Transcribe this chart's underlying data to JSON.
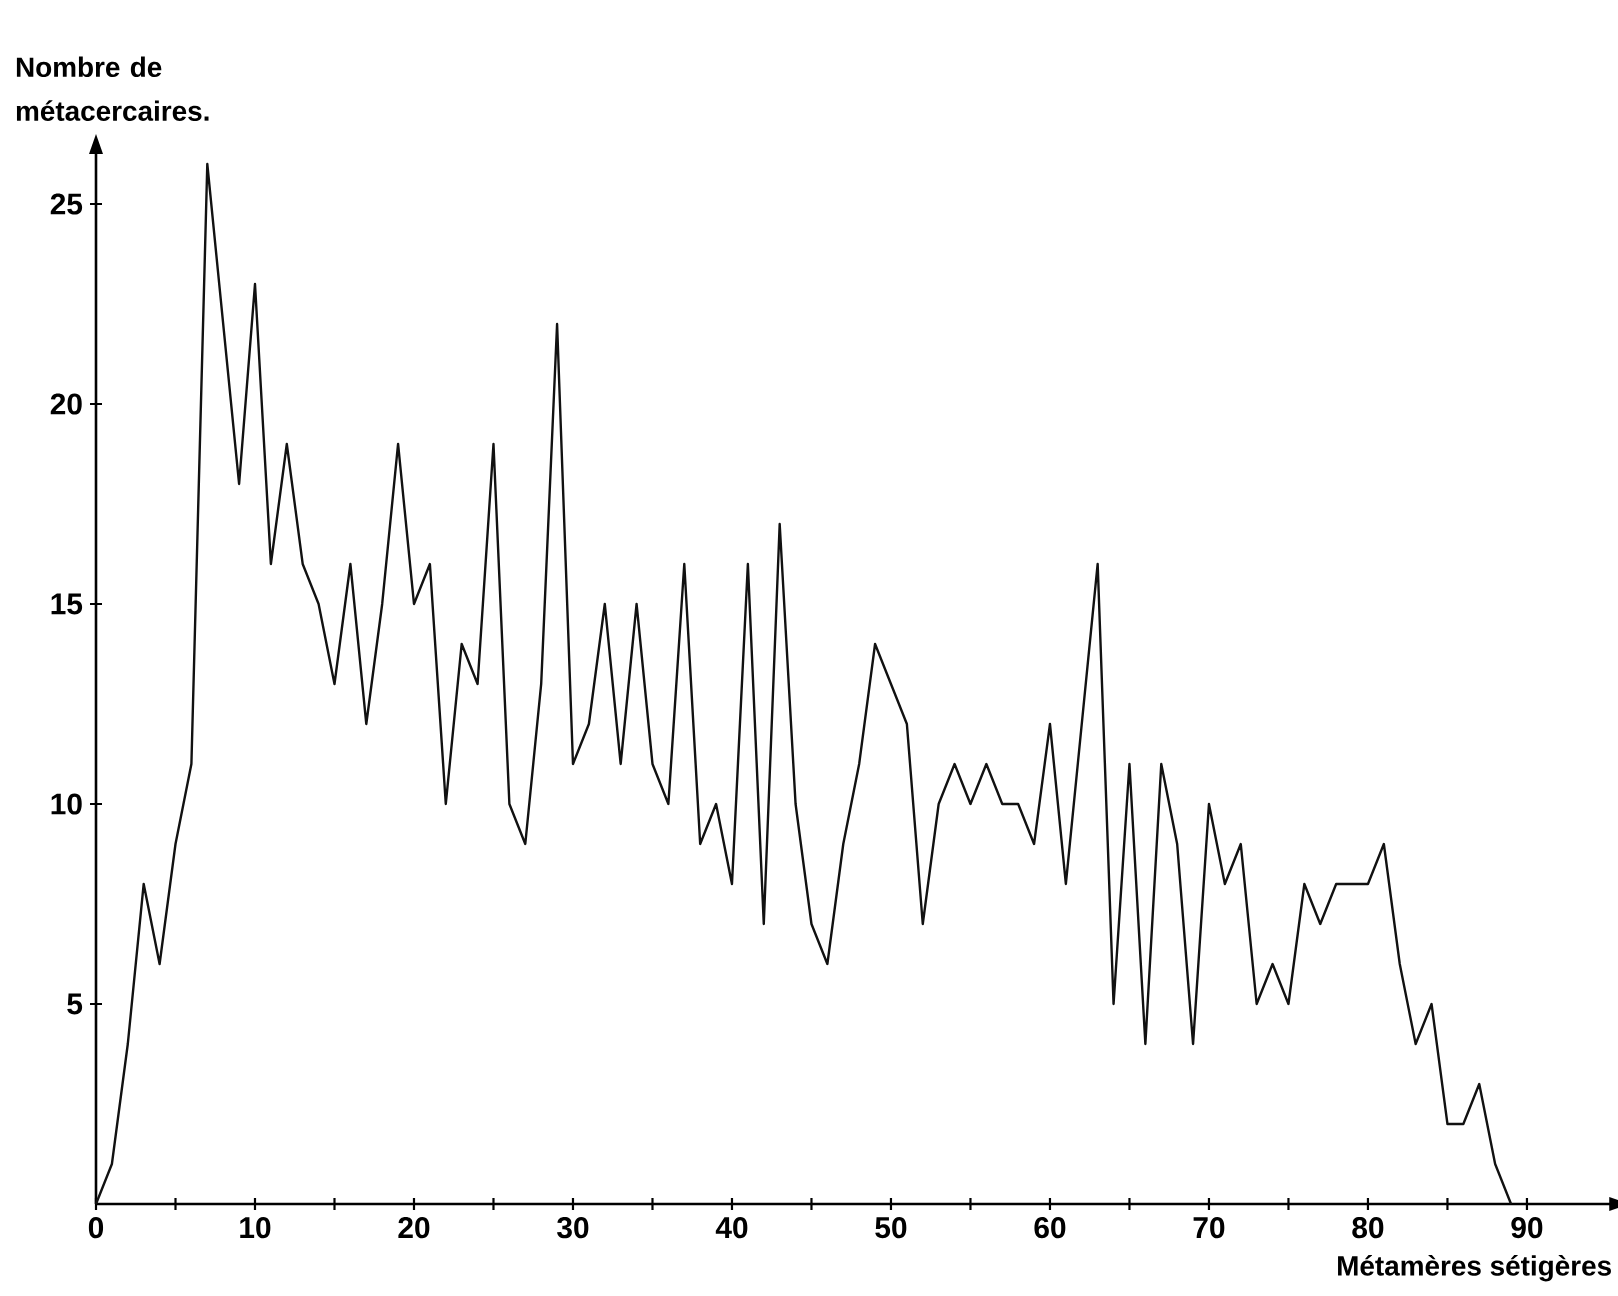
{
  "chart_data": {
    "type": "line",
    "xlabel": "Métamères sétigères",
    "ylabel": "Nombre de métacercaires.",
    "x": [
      0,
      1,
      2,
      3,
      4,
      5,
      6,
      7,
      8,
      9,
      10,
      11,
      12,
      13,
      14,
      15,
      16,
      17,
      18,
      19,
      20,
      21,
      22,
      23,
      24,
      25,
      26,
      27,
      28,
      29,
      30,
      31,
      32,
      33,
      34,
      35,
      36,
      37,
      38,
      39,
      40,
      41,
      42,
      43,
      44,
      45,
      46,
      47,
      48,
      49,
      50,
      51,
      52,
      53,
      54,
      55,
      56,
      57,
      58,
      59,
      60,
      61,
      62,
      63,
      64,
      65,
      66,
      67,
      68,
      69,
      70,
      71,
      72,
      73,
      74,
      75,
      76,
      77,
      78,
      79,
      80,
      81,
      82,
      83,
      84,
      85,
      86,
      87,
      88,
      89
    ],
    "series": [
      {
        "color": "#111111",
        "values": [
          0,
          1,
          4,
          8,
          6,
          9,
          11,
          26,
          22,
          18,
          23,
          16,
          19,
          16,
          15,
          13,
          16,
          12,
          15,
          19,
          15,
          16,
          10,
          14,
          13,
          19,
          10,
          9,
          13,
          22,
          11,
          12,
          15,
          11,
          15,
          11,
          10,
          16,
          9,
          10,
          8,
          16,
          7,
          17,
          10,
          7,
          6,
          9,
          11,
          14,
          13,
          12,
          7,
          10,
          11,
          10,
          11,
          10,
          10,
          9,
          12,
          8,
          12,
          16,
          5,
          11,
          4,
          11,
          9,
          4,
          10,
          8,
          9,
          5,
          6,
          5,
          8,
          7,
          8,
          8,
          8,
          9,
          6,
          4,
          5,
          2,
          2,
          3,
          1,
          0
        ]
      }
    ],
    "xlim": [
      0,
      95.3
    ],
    "ylim": [
      0,
      26.3
    ],
    "xticks": [
      0,
      {
        "value": 5,
        "label": null
      },
      10,
      {
        "value": 15,
        "label": null
      },
      20,
      {
        "value": 25,
        "label": null
      },
      30,
      {
        "value": 35,
        "label": null
      },
      40,
      {
        "value": 45,
        "label": null
      },
      50,
      {
        "value": 55,
        "label": null
      },
      60,
      {
        "value": 65,
        "label": null
      },
      70,
      {
        "value": 75,
        "label": null
      },
      80,
      {
        "value": 85,
        "label": null
      },
      90
    ],
    "yticks": [
      5,
      10,
      15,
      20,
      25
    ]
  }
}
